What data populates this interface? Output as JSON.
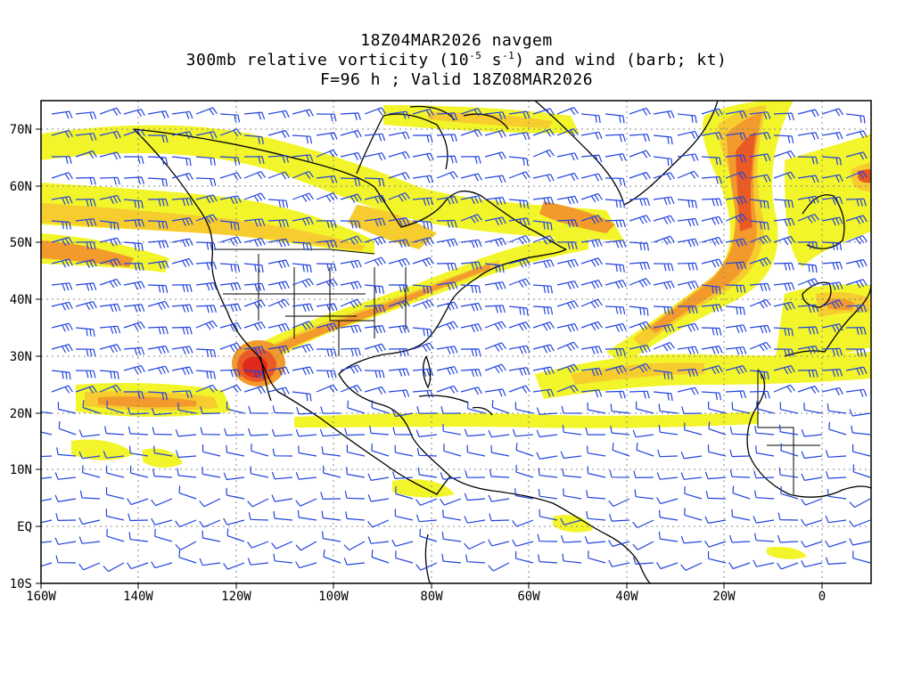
{
  "title": {
    "line1": "18Z04MAR2026 navgem",
    "line2_pre": "300mb relative vorticity (10",
    "line2_exp1": "-5",
    "line2_mid": " s",
    "line2_exp2": "-1",
    "line2_post": ") and wind (barb; kt)",
    "line3": "F=96 h ; Valid 18Z08MAR2026"
  },
  "axes": {
    "lon_ticks": [
      "160W",
      "140W",
      "120W",
      "100W",
      "80W",
      "60W",
      "40W",
      "20W",
      "0"
    ],
    "lat_ticks": [
      "70N",
      "60N",
      "50N",
      "40N",
      "30N",
      "20N",
      "10N",
      "EQ",
      "10S"
    ]
  },
  "colors": {
    "shade_light": "#f2f52a",
    "shade_mid": "#f7cc2e",
    "shade_orange": "#f29a2c",
    "shade_dark": "#ea5a24",
    "shade_max": "#e02a1c",
    "barb": "#2244dd",
    "coast": "#000000",
    "grid": "#888888"
  }
}
